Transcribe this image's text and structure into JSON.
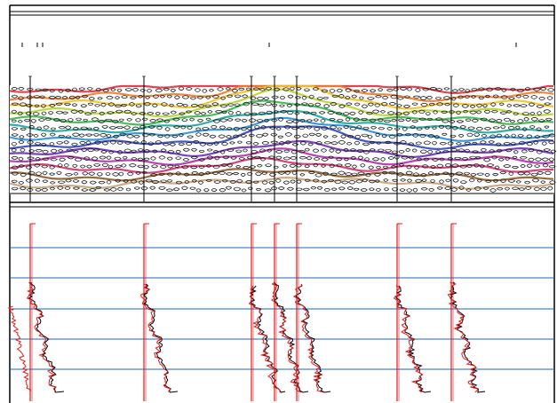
{
  "panels": {
    "cross_section": {
      "kind": "geologic cross-section with grain fill and colored horizons"
    },
    "well_logs": {
      "kind": "well log curves with horizontal marker lines"
    }
  },
  "wells": [
    {
      "label": ""
    },
    {
      "label": ""
    },
    {
      "label": ""
    },
    {
      "label": ""
    },
    {
      "label": ""
    },
    {
      "label": ""
    },
    {
      "label": ""
    }
  ],
  "horizon_colors": [
    "#e0303c",
    "#f07a2a",
    "#f2c21f",
    "#b6d42f",
    "#39b54a",
    "#1aa6a0",
    "#2a8fd6",
    "#3346b8",
    "#6a2fb5",
    "#b02fa8",
    "#d0306e",
    "#8b5a2b",
    "#c8a27a"
  ],
  "log_colors": {
    "primary": "#e01a1a",
    "secondary": "#000000",
    "marker_lines": "#1f66b5"
  }
}
